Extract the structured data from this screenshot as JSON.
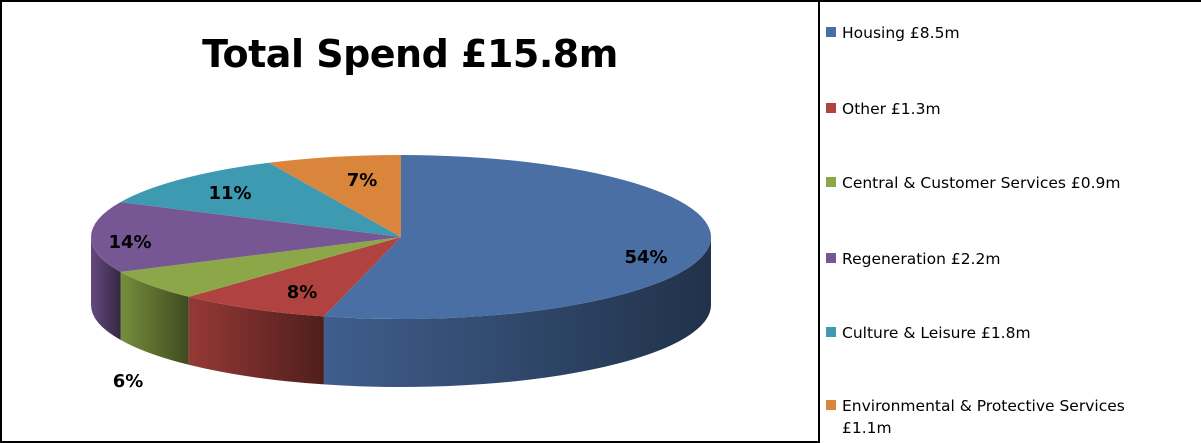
{
  "chart_data": {
    "type": "pie",
    "title": "Total Spend £15.8m",
    "slices": [
      {
        "legend": "Housing  £8.5m",
        "percent_label": "54%",
        "value": 54,
        "color": "#4A6FA5"
      },
      {
        "legend": "Other  £1.3m",
        "percent_label": "8%",
        "value": 8,
        "color": "#B0433F"
      },
      {
        "legend": "Central & Customer Services £0.9m",
        "percent_label": "6%",
        "value": 6,
        "color": "#8CA748"
      },
      {
        "legend": "Regeneration  £2.2m",
        "percent_label": "14%",
        "value": 14,
        "color": "#775694"
      },
      {
        "legend": "Culture & Leisure  £1.8m",
        "percent_label": "11%",
        "value": 11,
        "color": "#3E9AB0"
      },
      {
        "legend": "Environmental & Protective Services\n£1.1m",
        "percent_label": "7%",
        "value": 7,
        "color": "#D9853B"
      }
    ],
    "legend_position": "right",
    "style": "3d"
  }
}
